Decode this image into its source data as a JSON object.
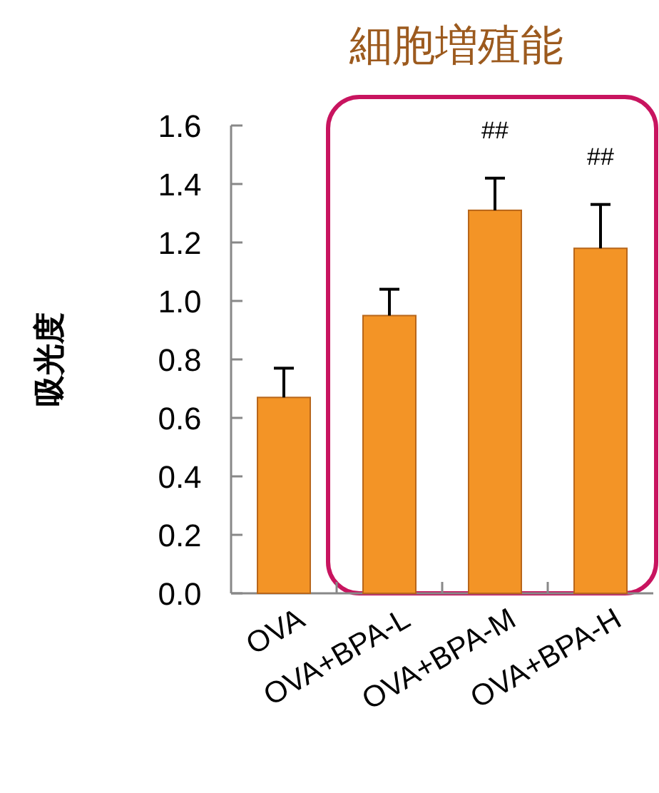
{
  "chart_data": {
    "type": "bar",
    "title": "細胞増殖能",
    "ylabel": "吸光度",
    "categories": [
      "OVA",
      "OVA+BPA-L",
      "OVA+BPA-M",
      "OVA+BPA-H"
    ],
    "values": [
      0.67,
      0.95,
      1.31,
      1.18
    ],
    "errors": [
      [
        0.67,
        0.77
      ],
      [
        0.95,
        1.04
      ],
      [
        1.31,
        1.42
      ],
      [
        1.18,
        1.33
      ]
    ],
    "color": "#f39426",
    "ylim": [
      0,
      1.6
    ],
    "yticks": [
      {
        "value": 0,
        "label": "0.0"
      },
      0.2,
      0.4,
      0.6,
      0.8,
      {
        "value": 1,
        "label": "1.0"
      },
      1.2,
      1.4,
      1.6
    ],
    "annotations": [
      "##",
      "##"
    ]
  }
}
